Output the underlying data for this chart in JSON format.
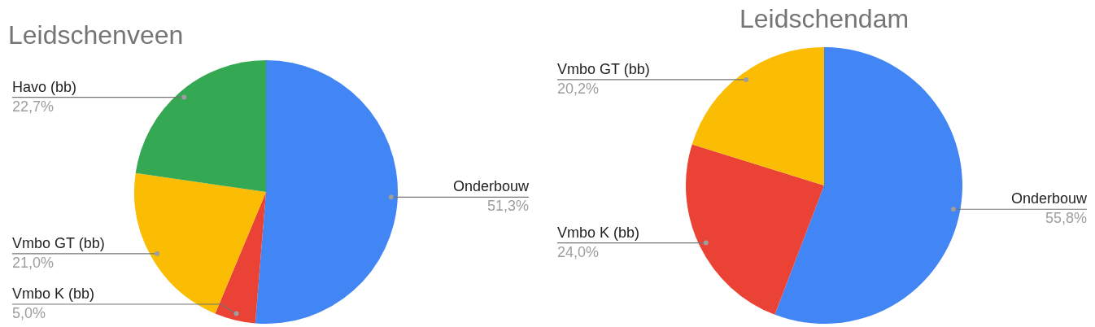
{
  "chart_data": [
    {
      "type": "pie",
      "title": "Leidschenveen",
      "categories": [
        "Onderbouw",
        "Vmbo K (bb)",
        "Vmbo GT (bb)",
        "Havo (bb)"
      ],
      "values": [
        51.3,
        5.0,
        21.0,
        22.7
      ],
      "colors": [
        "#4285f4",
        "#ea4335",
        "#fbbc04",
        "#34a853"
      ],
      "value_labels": [
        "51,3%",
        "5,0%",
        "21,0%",
        "22,7%"
      ],
      "legend": false
    },
    {
      "type": "pie",
      "title": "Leidschendam",
      "categories": [
        "Onderbouw",
        "Vmbo K (bb)",
        "Vmbo GT (bb)"
      ],
      "values": [
        55.8,
        24.0,
        20.2
      ],
      "colors": [
        "#4285f4",
        "#ea4335",
        "#fbbc04"
      ],
      "value_labels": [
        "55,8%",
        "24,0%",
        "20,2%"
      ],
      "legend": false
    }
  ]
}
